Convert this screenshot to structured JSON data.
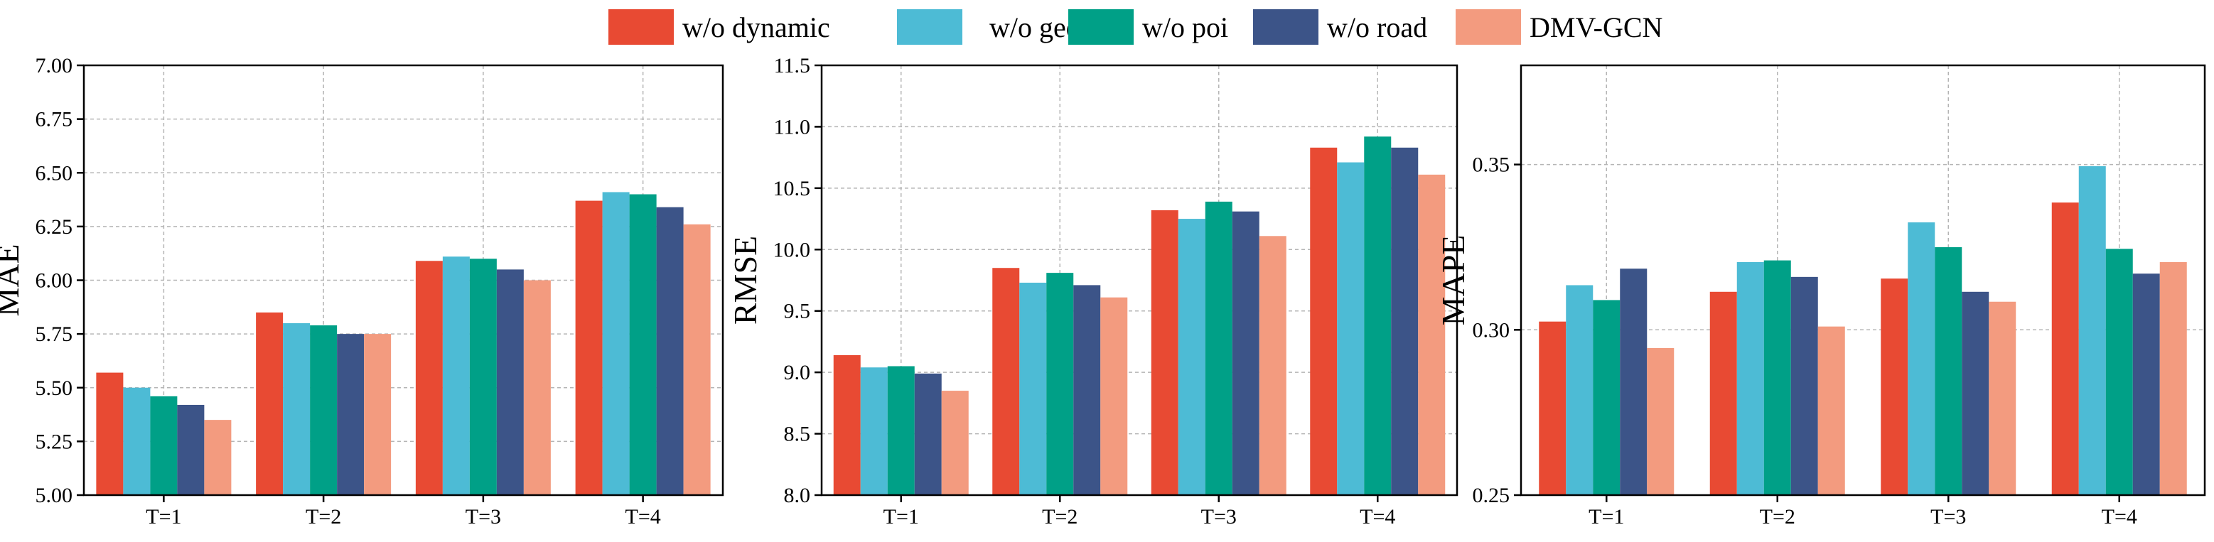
{
  "legend": [
    {
      "label": "w/o dynamic",
      "color": "#E84A33"
    },
    {
      "label": "w/o geo",
      "color": "#4DBBD5"
    },
    {
      "label": "w/o poi",
      "color": "#00A087"
    },
    {
      "label": "w/o road",
      "color": "#3C5488"
    },
    {
      "label": "DMV-GCN",
      "color": "#F39B7F"
    }
  ],
  "chart_data": [
    {
      "type": "bar",
      "ylabel": "MAE",
      "categories": [
        "T=1",
        "T=2",
        "T=3",
        "T=4"
      ],
      "ylim": [
        5.0,
        7.0
      ],
      "yticks": [
        5.0,
        5.25,
        5.5,
        5.75,
        6.0,
        6.25,
        6.5,
        6.75,
        7.0
      ],
      "ytick_labels": [
        "5.00",
        "5.25",
        "5.50",
        "5.75",
        "6.00",
        "6.25",
        "6.50",
        "6.75",
        "7.00"
      ],
      "grid": true,
      "series": [
        {
          "name": "w/o dynamic",
          "values": [
            5.57,
            5.85,
            6.09,
            6.37
          ]
        },
        {
          "name": "w/o geo",
          "values": [
            5.5,
            5.8,
            6.11,
            6.41
          ]
        },
        {
          "name": "w/o poi",
          "values": [
            5.46,
            5.79,
            6.1,
            6.4
          ]
        },
        {
          "name": "w/o road",
          "values": [
            5.42,
            5.75,
            6.05,
            6.34
          ]
        },
        {
          "name": "DMV-GCN",
          "values": [
            5.35,
            5.75,
            6.0,
            6.26
          ]
        }
      ]
    },
    {
      "type": "bar",
      "ylabel": "RMSE",
      "categories": [
        "T=1",
        "T=2",
        "T=3",
        "T=4"
      ],
      "ylim": [
        8.0,
        11.5
      ],
      "yticks": [
        8.0,
        8.5,
        9.0,
        9.5,
        10.0,
        10.5,
        11.0,
        11.5
      ],
      "ytick_labels": [
        "8.0",
        "8.5",
        "9.0",
        "9.5",
        "10.0",
        "10.5",
        "11.0",
        "11.5"
      ],
      "grid": true,
      "series": [
        {
          "name": "w/o dynamic",
          "values": [
            9.14,
            9.85,
            10.32,
            10.83
          ]
        },
        {
          "name": "w/o geo",
          "values": [
            9.04,
            9.73,
            10.25,
            10.71
          ]
        },
        {
          "name": "w/o poi",
          "values": [
            9.05,
            9.81,
            10.39,
            10.92
          ]
        },
        {
          "name": "w/o road",
          "values": [
            8.99,
            9.71,
            10.31,
            10.83
          ]
        },
        {
          "name": "DMV-GCN",
          "values": [
            8.85,
            9.61,
            10.11,
            10.61
          ]
        }
      ]
    },
    {
      "type": "bar",
      "ylabel": "MAPE",
      "categories": [
        "T=1",
        "T=2",
        "T=3",
        "T=4"
      ],
      "ylim": [
        0.25,
        0.38
      ],
      "yticks": [
        0.25,
        0.3,
        0.35
      ],
      "ytick_labels": [
        "0.25",
        "0.30",
        "0.35"
      ],
      "grid": true,
      "series": [
        {
          "name": "w/o dynamic",
          "values": [
            0.3025,
            0.3115,
            0.3155,
            0.3385
          ]
        },
        {
          "name": "w/o geo",
          "values": [
            0.3135,
            0.3205,
            0.3325,
            0.3495
          ]
        },
        {
          "name": "w/o poi",
          "values": [
            0.309,
            0.321,
            0.325,
            0.3245
          ]
        },
        {
          "name": "w/o road",
          "values": [
            0.3185,
            0.316,
            0.3115,
            0.317
          ]
        },
        {
          "name": "DMV-GCN",
          "values": [
            0.2945,
            0.301,
            0.3085,
            0.3205
          ]
        }
      ]
    }
  ]
}
